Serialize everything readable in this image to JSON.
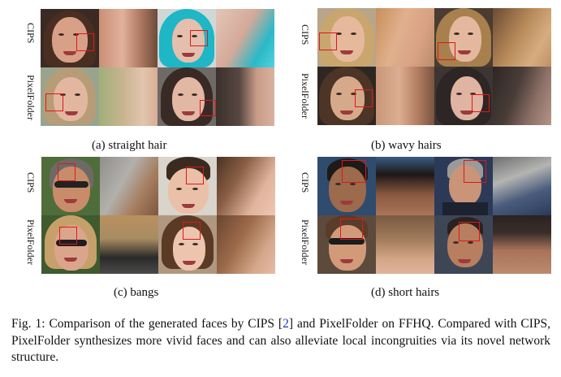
{
  "panels": [
    {
      "subcaption": "(a) straight hair",
      "row_labels": [
        "CIPS",
        "PixelFolder"
      ]
    },
    {
      "subcaption": "(b) wavy hairs",
      "row_labels": [
        "CIPS",
        "PixelFolder"
      ]
    },
    {
      "subcaption": "(c) bangs",
      "row_labels": [
        "CIPS",
        "PixelFolder"
      ]
    },
    {
      "subcaption": "(d) short hairs",
      "row_labels": [
        "CIPS",
        "PixelFolder"
      ]
    }
  ],
  "caption": {
    "prefix": "Fig. 1: Comparison of the generated faces by CIPS [",
    "cite": "2",
    "suffix": "] and PixelFolder on FFHQ. Compared with CIPS, PixelFolder synthesizes more vivid faces and can also alleviate local incongruities via its novel network structure."
  },
  "colors": {
    "highlight_box": "#e01818",
    "citation": "#1a33c9"
  }
}
